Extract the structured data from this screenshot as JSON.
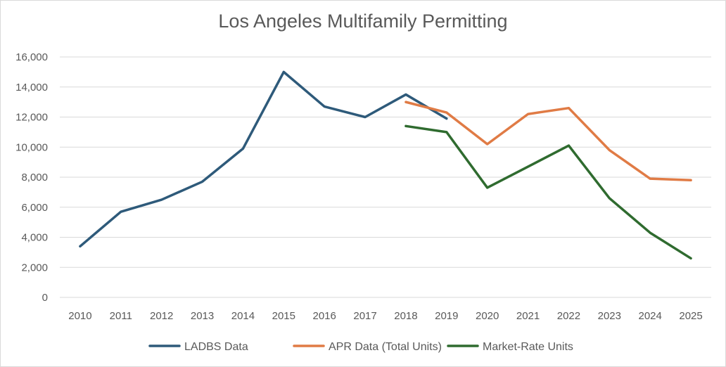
{
  "chart_data": {
    "type": "line",
    "title": "Los Angeles Multifamily Permitting",
    "xlabel": "",
    "ylabel": "",
    "ylim": [
      0,
      16000
    ],
    "yticks": [
      "0",
      "2,000",
      "4,000",
      "6,000",
      "8,000",
      "10,000",
      "12,000",
      "14,000",
      "16,000"
    ],
    "categories": [
      "2010",
      "2011",
      "2012",
      "2013",
      "2014",
      "2015",
      "2016",
      "2017",
      "2018",
      "2019",
      "2020",
      "2021",
      "2022",
      "2023",
      "2024",
      "2025"
    ],
    "grid": true,
    "legend_position": "bottom",
    "series": [
      {
        "name": "LADBS Data",
        "color": "#2e5a7a",
        "values": [
          3400,
          5700,
          6500,
          7700,
          9900,
          15000,
          12700,
          12000,
          13500,
          11900,
          null,
          null,
          null,
          null,
          null,
          null
        ]
      },
      {
        "name": "APR Data (Total Units)",
        "color": "#e07b45",
        "values": [
          null,
          null,
          null,
          null,
          null,
          null,
          null,
          null,
          13000,
          12300,
          10200,
          12200,
          12600,
          9800,
          7900,
          7800
        ]
      },
      {
        "name": "Market-Rate Units",
        "color": "#2f6b2f",
        "values": [
          null,
          null,
          null,
          null,
          null,
          null,
          null,
          null,
          11400,
          11000,
          7300,
          8700,
          10100,
          6600,
          4300,
          2600
        ]
      }
    ]
  }
}
